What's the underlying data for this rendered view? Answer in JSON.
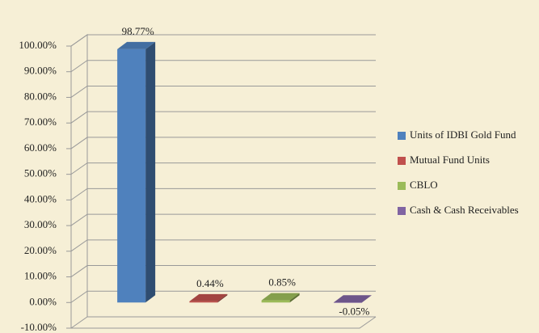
{
  "chart_data": {
    "type": "bar3d",
    "series": [
      {
        "name": "Units of IDBI Gold Fund",
        "color": "#4f81bd",
        "values": [
          98.77
        ],
        "value_labels": [
          "98.77%"
        ]
      },
      {
        "name": "Mutual Fund Units",
        "color": "#c0504d",
        "values": [
          0.44
        ],
        "value_labels": [
          "0.44%"
        ]
      },
      {
        "name": "CBLO",
        "color": "#9bbb59",
        "values": [
          0.85
        ],
        "value_labels": [
          "0.85%"
        ]
      },
      {
        "name": "Cash & Cash Receivables",
        "color": "#8064a2",
        "values": [
          -0.05
        ],
        "value_labels": [
          "-0.05%"
        ]
      }
    ],
    "ylim": [
      -10,
      100
    ],
    "yticks": [
      {
        "value": -10,
        "label": "-10.00%"
      },
      {
        "value": 0,
        "label": "0.00%"
      },
      {
        "value": 10,
        "label": "10.00%"
      },
      {
        "value": 20,
        "label": "20.00%"
      },
      {
        "value": 30,
        "label": "30.00%"
      },
      {
        "value": 40,
        "label": "40.00%"
      },
      {
        "value": 50,
        "label": "50.00%"
      },
      {
        "value": 60,
        "label": "60.00%"
      },
      {
        "value": 70,
        "label": "70.00%"
      },
      {
        "value": 80,
        "label": "80.00%"
      },
      {
        "value": 90,
        "label": "90.00%"
      },
      {
        "value": 100,
        "label": "100.00%"
      }
    ],
    "grid": true,
    "legend": "right"
  }
}
